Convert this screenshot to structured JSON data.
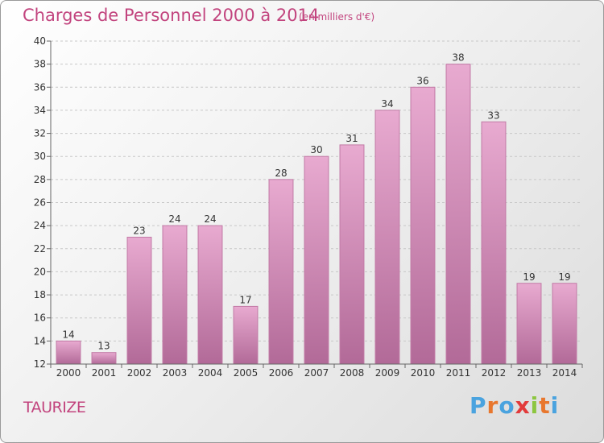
{
  "title": "Charges de Personnel 2000 à 2014",
  "subtitle": "(en milliers d'€)",
  "commune": "TAURIZE",
  "logo": {
    "letters": [
      "P",
      "r",
      "o",
      "x",
      "i",
      "t",
      "i"
    ],
    "colors": [
      "#4aa3df",
      "#e8772e",
      "#4aa3df",
      "#e23b3b",
      "#8cc63f",
      "#e8772e",
      "#4aa3df"
    ]
  },
  "colors": {
    "bar_top": "#e8aad0",
    "bar_bottom": "#b26a98",
    "bar_edge": "#c27aa6",
    "grid": "#c8c8c8",
    "accent": "#c2447e"
  },
  "chart_data": {
    "type": "bar",
    "categories": [
      "2000",
      "2001",
      "2002",
      "2003",
      "2004",
      "2005",
      "2006",
      "2007",
      "2008",
      "2009",
      "2010",
      "2011",
      "2012",
      "2013",
      "2014"
    ],
    "values": [
      14,
      13,
      23,
      24,
      24,
      17,
      28,
      30,
      31,
      34,
      36,
      38,
      33,
      19,
      19
    ],
    "yticks": [
      "12",
      "14",
      "16",
      "18",
      "20",
      "22",
      "24",
      "26",
      "28",
      "30",
      "32",
      "34",
      "36",
      "38",
      "40"
    ],
    "ylim": [
      12,
      40
    ],
    "title": "Charges de Personnel 2000 à 2014",
    "xlabel": "",
    "ylabel": "",
    "grid": true
  }
}
